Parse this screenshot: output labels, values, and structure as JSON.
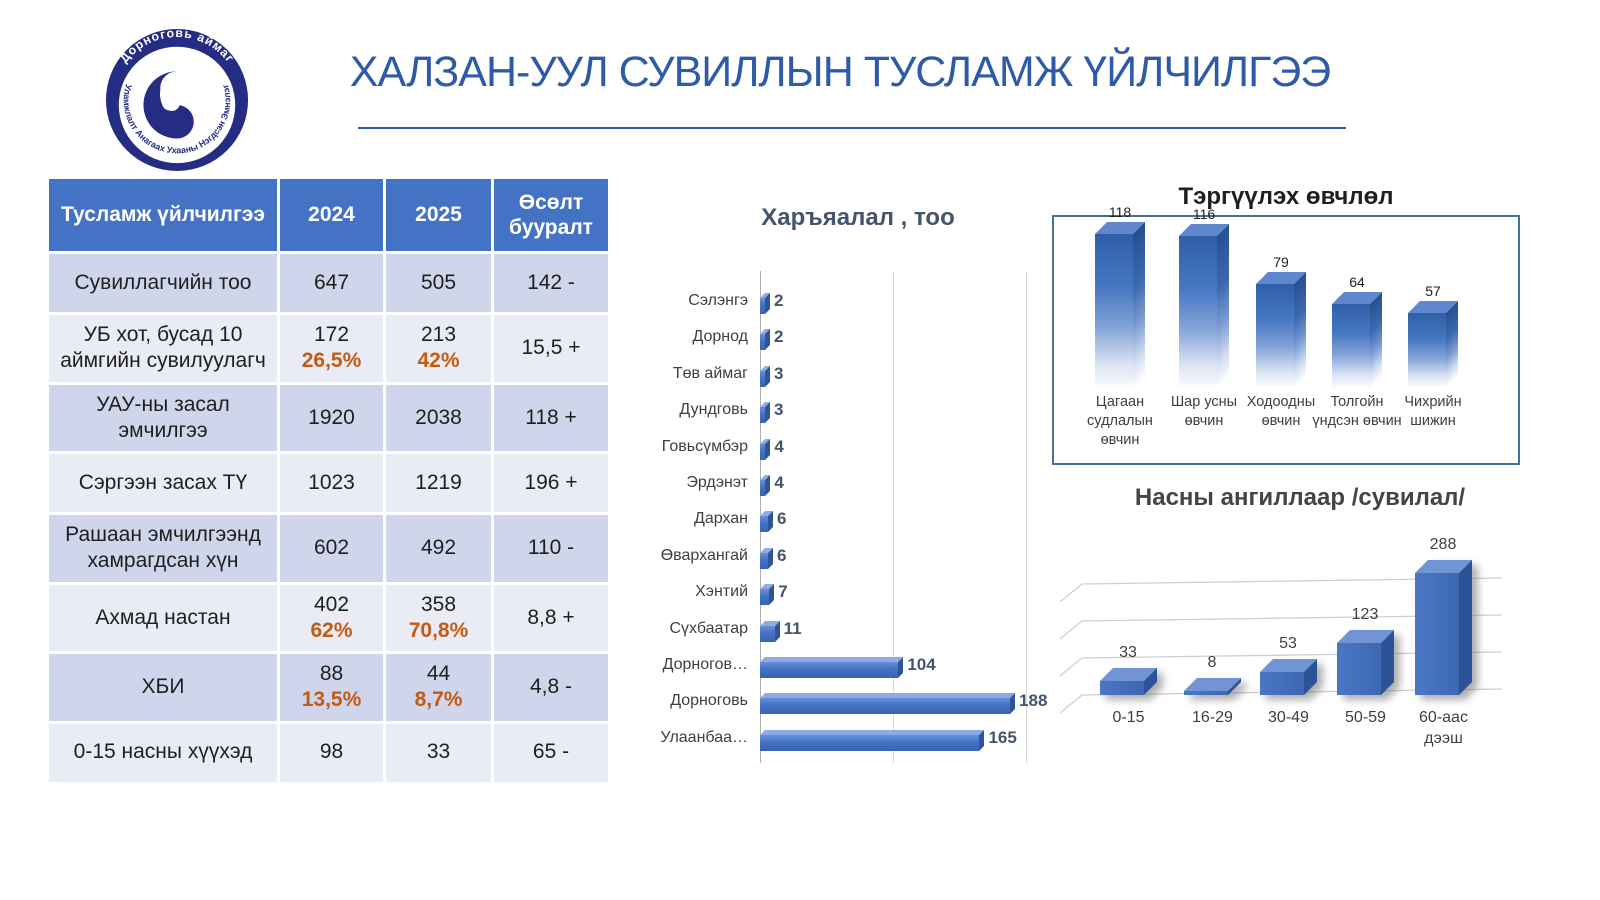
{
  "slide": {
    "title": "ХАЛЗАН-УУЛ СУВИЛЛЫН ТУСЛАМЖ ҮЙЛЧИЛГЭЭ"
  },
  "logo": {
    "arc_top": "Дорноговь аймаг",
    "arc_bottom": "Уламжлалт Анагаах Ухааны Нэгдсэн Эмнэлэг"
  },
  "table": {
    "headers": [
      "Тусламж үйлчилгээ",
      "2024",
      "2025",
      "Өсөлт бууралт"
    ],
    "rows": [
      {
        "label": "Сувиллагчийн тоо",
        "v2024": "647",
        "p2024": "",
        "v2025": "505",
        "p2025": "",
        "delta": "142 -"
      },
      {
        "label": "УБ хот, бусад 10 аймгийн сувилуулагч",
        "v2024": "172",
        "p2024": "26,5%",
        "v2025": "213",
        "p2025": "42%",
        "delta": "15,5 +"
      },
      {
        "label": "УАУ-ны засал эмчилгээ",
        "v2024": "1920",
        "p2024": "",
        "v2025": "2038",
        "p2025": "",
        "delta": "118 +"
      },
      {
        "label": "Сэргээн засах ТҮ",
        "v2024": "1023",
        "p2024": "",
        "v2025": "1219",
        "p2025": "",
        "delta": "196 +"
      },
      {
        "label": "Рашаан эмчилгээнд хамрагдсан хүн",
        "v2024": "602",
        "p2024": "",
        "v2025": "492",
        "p2025": "",
        "delta": "110 -"
      },
      {
        "label": "Ахмад настан",
        "v2024": "402",
        "p2024": "62%",
        "v2025": "358",
        "p2025": "70,8%",
        "delta": "8,8 +"
      },
      {
        "label": "ХБИ",
        "v2024": "88",
        "p2024": "13,5%",
        "v2025": "44",
        "p2025": "8,7%",
        "delta": "4,8 -"
      },
      {
        "label": "0-15 насны хүүхэд",
        "v2024": "98",
        "p2024": "",
        "v2025": "33",
        "p2025": "",
        "delta": "65 -"
      }
    ]
  },
  "chart_data": [
    {
      "id": "affiliation",
      "type": "bar",
      "orientation": "horizontal",
      "title": "Харъяалал , тоо",
      "categories": [
        "Сэлэнгэ",
        "Дорнод",
        "Төв аймаг",
        "Дундговь",
        "Говьсүмбэр",
        "Эрдэнэт",
        "Дархан",
        "Өвархангай",
        "Хэнтий",
        "Сүхбаатар",
        "Дорногов…",
        "Дорноговь",
        "Улаанбаа…"
      ],
      "values": [
        2,
        2,
        3,
        3,
        4,
        4,
        6,
        6,
        7,
        11,
        104,
        188,
        165
      ],
      "xlim": [
        0,
        200
      ],
      "gridline_step": 100,
      "grid": true,
      "legend": false,
      "data_labels": true
    },
    {
      "id": "leading-diseases",
      "type": "bar",
      "orientation": "vertical",
      "title": "Тэргүүлэх өвчлөл",
      "categories": [
        "Цагаан судлалын өвчин",
        "Шар усны өвчин",
        "Ходоодны өвчин",
        "Толгойн үндсэн өвчин",
        "Чихрийн шижин"
      ],
      "values": [
        118,
        116,
        79,
        64,
        57
      ],
      "ylim": [
        0,
        130
      ],
      "grid": false,
      "legend": false,
      "data_labels": true
    },
    {
      "id": "age-groups",
      "type": "bar",
      "orientation": "vertical",
      "title": "Насны ангиллаар /сувилал/",
      "categories": [
        "0-15",
        "16-29",
        "30-49",
        "50-59",
        "60-аас дээш"
      ],
      "values": [
        33,
        8,
        53,
        123,
        288
      ],
      "ylim": [
        0,
        300
      ],
      "grid": true,
      "legend": false,
      "data_labels": true
    }
  ],
  "colors": {
    "accent_blue": "#4472C4",
    "header_blue": "#4472C4",
    "row_band_dark": "#CFD5EA",
    "row_band_light": "#E9EBF5",
    "title_blue": "#2D5BA8",
    "percent_orange": "#C55A11",
    "chart_label": "#44546A",
    "bar_side_dark": "#2E5697",
    "box_border": "#41719C",
    "logo_navy": "#252C83"
  }
}
